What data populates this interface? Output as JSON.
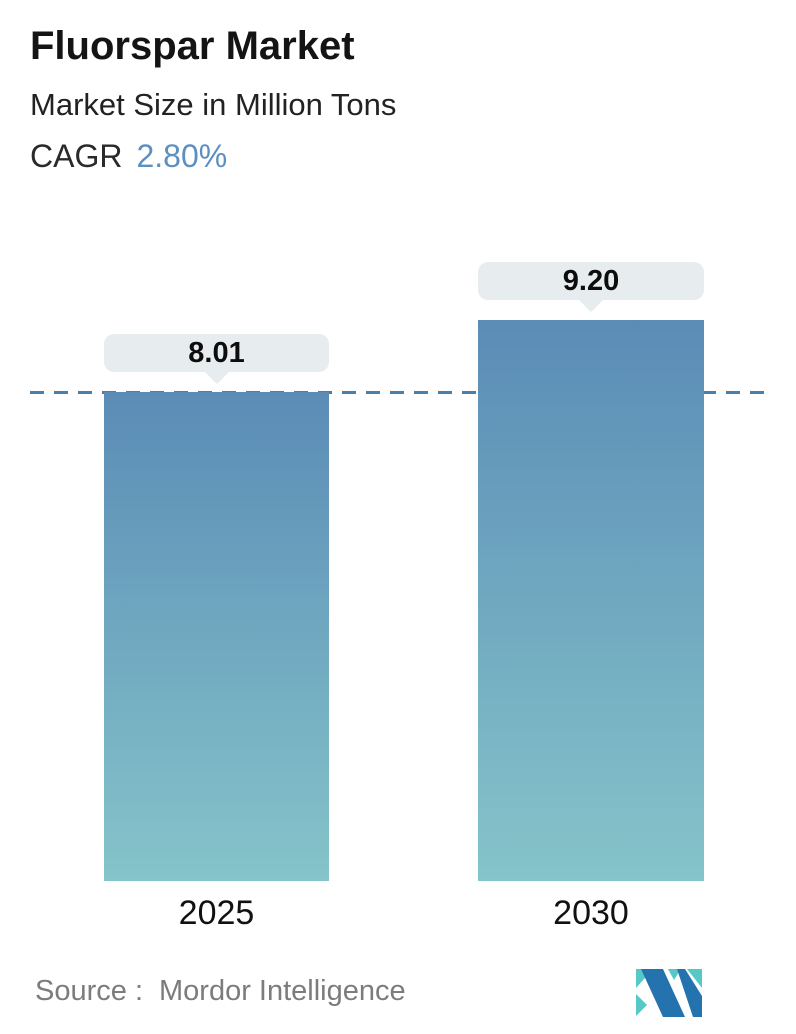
{
  "header": {
    "title": "Fluorspar Market",
    "subtitle": "Market Size in Million Tons",
    "cagr_label": "CAGR",
    "cagr_value": "2.80%"
  },
  "chart_data": {
    "type": "bar",
    "title": "Fluorspar Market",
    "subtitle": "Market Size in Million Tons",
    "unit": "Million Tons",
    "cagr": "2.80%",
    "categories": [
      "2025",
      "2030"
    ],
    "values": [
      8.01,
      9.2
    ],
    "value_labels": [
      "8.01",
      "9.20"
    ],
    "ylim": [
      0,
      9.2
    ],
    "reference_line": {
      "value": 8.01,
      "style": "dashed"
    },
    "grid": false,
    "legend": false
  },
  "footer": {
    "source_label": "Source :",
    "source_value": "Mordor Intelligence"
  },
  "colors": {
    "accent_blue": "#5b90c0",
    "bar_top": "#5b8cb6",
    "bar_bottom": "#85c4ca",
    "dash_line": "#4a7fad",
    "tooltip_bg": "#e7edee",
    "source_gray": "#7c7c7c",
    "logo_teal": "#56c8c8",
    "logo_blue": "#2472ae"
  }
}
